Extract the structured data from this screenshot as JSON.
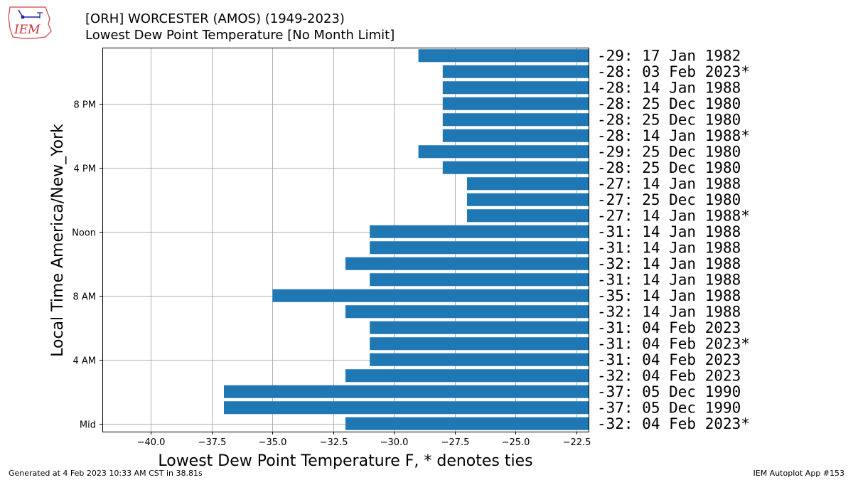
{
  "header": {
    "title": "[ORH] WORCESTER (AMOS) (1949-2023)",
    "subtitle": "Lowest Dew Point Temperature [No Month Limit]"
  },
  "logo": {
    "text": "IEM"
  },
  "footer": {
    "generated": "Generated at 4 Feb 2023 10:33 AM CST in 38.81s",
    "app": "IEM Autoplot App #153"
  },
  "colors": {
    "bar": "#1f77b4",
    "grid": "#b0b0b0"
  },
  "chart_data": {
    "type": "bar",
    "orientation": "horizontal",
    "xlabel": "Lowest Dew Point Temperature F, * denotes ties",
    "ylabel": "Local Time America/New_York",
    "xlim": [
      -42,
      -22
    ],
    "xticks": [
      -40.0,
      -37.5,
      -35.0,
      -32.5,
      -30.0,
      -27.5,
      -25.0,
      -22.5
    ],
    "xtick_labels": [
      "−40.0",
      "−37.5",
      "−35.0",
      "−32.5",
      "−30.0",
      "−27.5",
      "−25.0",
      "−22.5"
    ],
    "yticks": [
      0,
      4,
      8,
      12,
      16,
      20
    ],
    "ytick_labels": [
      "Mid",
      "4 AM",
      "8 AM",
      "Noon",
      "4 PM",
      "8 PM"
    ],
    "grid": true,
    "hours": [
      0,
      1,
      2,
      3,
      4,
      5,
      6,
      7,
      8,
      9,
      10,
      11,
      12,
      13,
      14,
      15,
      16,
      17,
      18,
      19,
      20,
      21,
      22,
      23
    ],
    "values": [
      -32,
      -37,
      -37,
      -32,
      -31,
      -31,
      -31,
      -32,
      -35,
      -31,
      -32,
      -31,
      -31,
      -27,
      -27,
      -27,
      -28,
      -29,
      -28,
      -28,
      -28,
      -28,
      -28,
      -29
    ],
    "labels": [
      "-32: 04 Feb 2023*",
      "-37: 05 Dec 1990",
      "-37: 05 Dec 1990",
      "-32: 04 Feb 2023",
      "-31: 04 Feb 2023",
      "-31: 04 Feb 2023*",
      "-31: 04 Feb 2023",
      "-32: 14 Jan 1988",
      "-35: 14 Jan 1988",
      "-31: 14 Jan 1988",
      "-32: 14 Jan 1988",
      "-31: 14 Jan 1988",
      "-31: 14 Jan 1988",
      "-27: 14 Jan 1988*",
      "-27: 25 Dec 1980",
      "-27: 14 Jan 1988",
      "-28: 25 Dec 1980",
      "-29: 25 Dec 1980",
      "-28: 14 Jan 1988*",
      "-28: 25 Dec 1980",
      "-28: 25 Dec 1980",
      "-28: 14 Jan 1988",
      "-28: 03 Feb 2023*",
      "-29: 17 Jan 1982"
    ]
  }
}
